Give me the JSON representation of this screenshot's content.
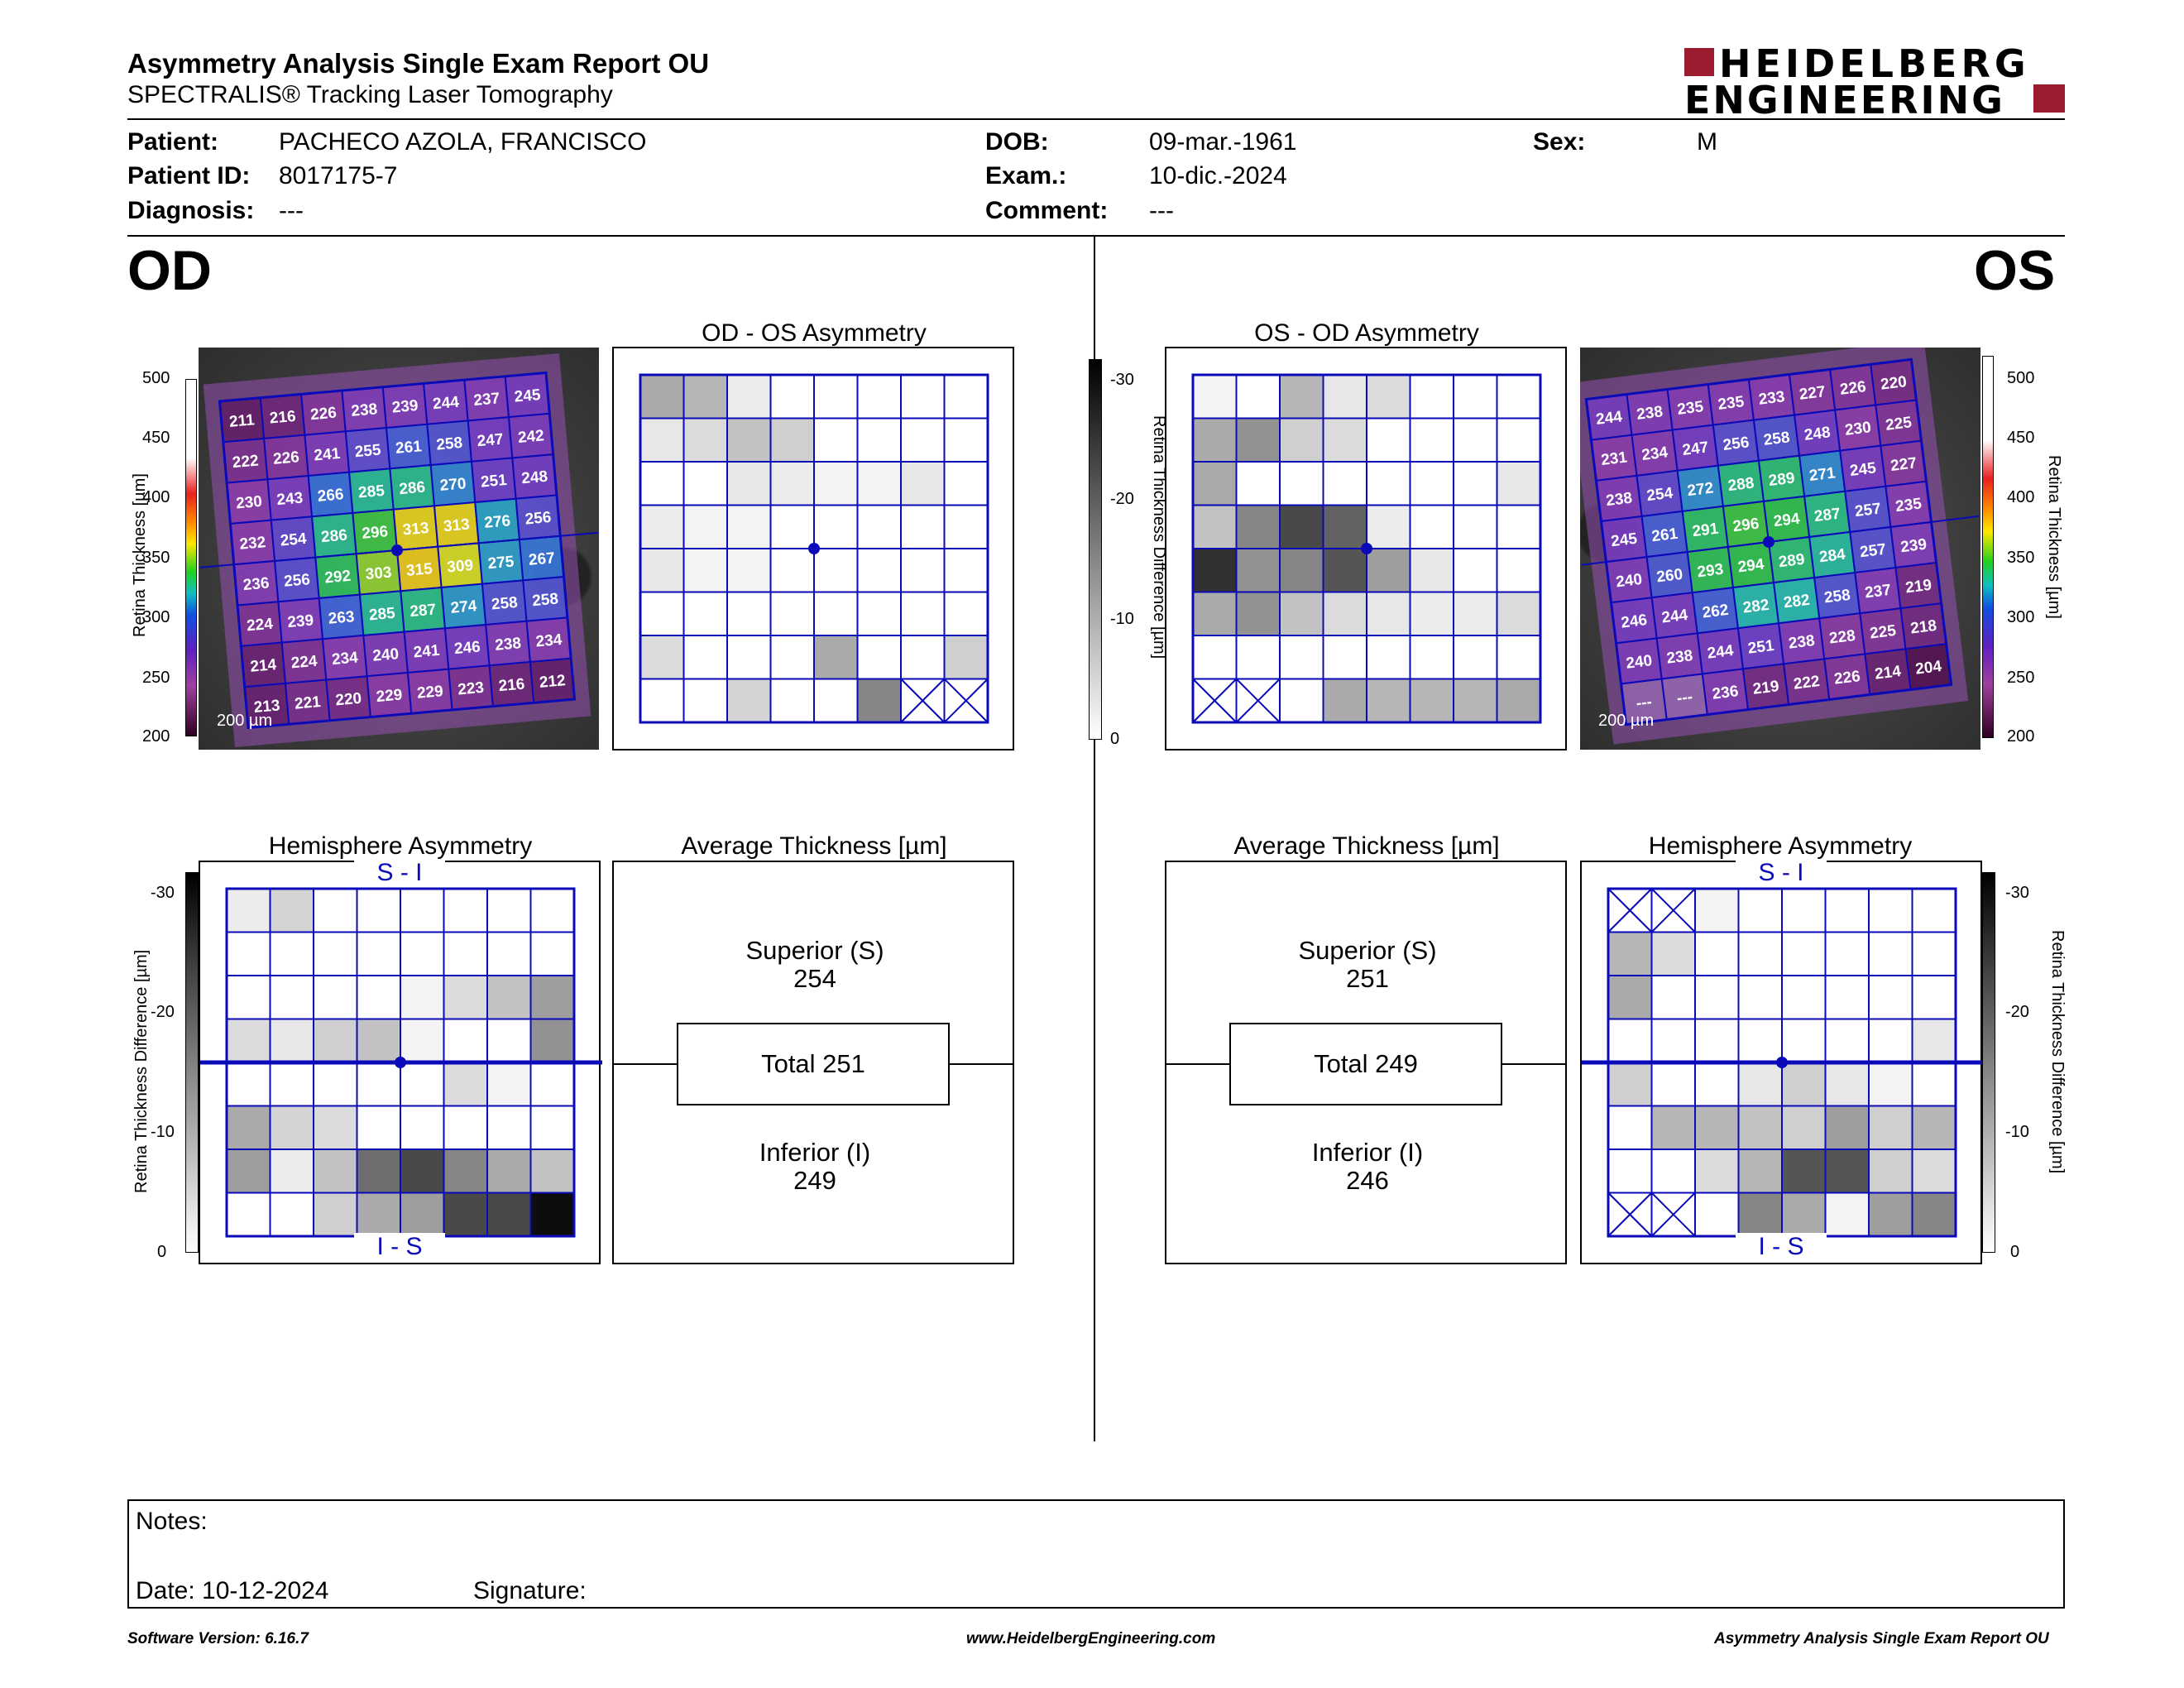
{
  "header": {
    "title": "Asymmetry Analysis Single Exam Report OU",
    "subtitle": "SPECTRALIS® Tracking Laser Tomography",
    "logo_line1": "HEIDELBERG",
    "logo_line2": "ENGINEERING"
  },
  "patient": {
    "patient_label": "Patient:",
    "patient_value": "PACHECO AZOLA, FRANCISCO",
    "id_label": "Patient ID:",
    "id_value": "8017175-7",
    "diagnosis_label": "Diagnosis:",
    "diagnosis_value": "---",
    "dob_label": "DOB:",
    "dob_value": "09-mar.-1961",
    "exam_label": "Exam.:",
    "exam_value": "10-dic.-2024",
    "comment_label": "Comment:",
    "comment_value": "---",
    "sex_label": "Sex:",
    "sex_value": "M"
  },
  "od": {
    "eye_label": "OD",
    "asym_title": "OD - OS Asymmetry",
    "hemi_title": "Hemisphere Asymmetry",
    "avg_title": "Average Thickness [µm]",
    "scale_label": "200 µm",
    "superior_label": "Superior (S)",
    "superior_value": "254",
    "total_label": "Total 251",
    "inferior_label": "Inferior (I)",
    "inferior_value": "249",
    "hemi_top": "S - I",
    "hemi_bottom": "I - S",
    "thickness_grid": [
      [
        211,
        216,
        226,
        238,
        239,
        244,
        237,
        245
      ],
      [
        222,
        226,
        241,
        255,
        261,
        258,
        247,
        242
      ],
      [
        230,
        243,
        266,
        285,
        286,
        270,
        251,
        248
      ],
      [
        232,
        254,
        286,
        296,
        313,
        313,
        276,
        256
      ],
      [
        236,
        256,
        292,
        303,
        315,
        309,
        275,
        267
      ],
      [
        224,
        239,
        263,
        285,
        287,
        274,
        258,
        258
      ],
      [
        214,
        224,
        234,
        240,
        241,
        246,
        238,
        234
      ],
      [
        213,
        221,
        220,
        229,
        229,
        223,
        216,
        212
      ]
    ],
    "asym_grid": [
      [
        0.35,
        0.3,
        0.08,
        0,
        0,
        0,
        0,
        0
      ],
      [
        0.1,
        0.15,
        0.25,
        0.2,
        0,
        0,
        0,
        0
      ],
      [
        0,
        0,
        0.1,
        0.08,
        0.05,
        0.05,
        0.1,
        0
      ],
      [
        0.08,
        0.05,
        0.05,
        0,
        0,
        0,
        0,
        0
      ],
      [
        0.1,
        0.05,
        0.05,
        0,
        0,
        0,
        0,
        0
      ],
      [
        0,
        0,
        0,
        0,
        0,
        0,
        0,
        0
      ],
      [
        0.15,
        0,
        0,
        0,
        0.35,
        0,
        0,
        0.2
      ],
      [
        0,
        0,
        0.18,
        0,
        0,
        0.5,
        "x",
        "x"
      ]
    ],
    "hemi_grid": [
      [
        0.08,
        0.18,
        0,
        0,
        0,
        0,
        0,
        0
      ],
      [
        0,
        0,
        0,
        0,
        0,
        0,
        0,
        0
      ],
      [
        0,
        0,
        0,
        0,
        0.05,
        0.15,
        0.25,
        0.4
      ],
      [
        0.15,
        0.1,
        0.2,
        0.25,
        0.05,
        0,
        0,
        0.45
      ],
      [
        0,
        0,
        0,
        0,
        0,
        0.15,
        0.05,
        0
      ],
      [
        0.35,
        0.18,
        0.15,
        0,
        0,
        0,
        0,
        0
      ],
      [
        0.4,
        0.08,
        0.25,
        0.6,
        0.75,
        0.5,
        0.35,
        0.25
      ],
      [
        0,
        0,
        0.2,
        0.35,
        0.4,
        0.75,
        0.75,
        1.0
      ]
    ]
  },
  "os": {
    "eye_label": "OS",
    "asym_title": "OS - OD Asymmetry",
    "hemi_title": "Hemisphere Asymmetry",
    "avg_title": "Average Thickness [µm]",
    "scale_label": "200 µm",
    "superior_label": "Superior (S)",
    "superior_value": "251",
    "total_label": "Total 249",
    "inferior_label": "Inferior (I)",
    "inferior_value": "246",
    "hemi_top": "S - I",
    "hemi_bottom": "I - S",
    "thickness_grid": [
      [
        244,
        238,
        235,
        235,
        233,
        227,
        226,
        220
      ],
      [
        231,
        234,
        247,
        256,
        258,
        248,
        230,
        225
      ],
      [
        238,
        254,
        272,
        288,
        289,
        271,
        245,
        227
      ],
      [
        245,
        261,
        291,
        296,
        294,
        287,
        257,
        235
      ],
      [
        240,
        260,
        293,
        294,
        289,
        284,
        257,
        239
      ],
      [
        246,
        244,
        262,
        282,
        282,
        258,
        237,
        219
      ],
      [
        240,
        238,
        244,
        251,
        238,
        228,
        225,
        218
      ],
      [
        "---",
        "---",
        236,
        219,
        222,
        226,
        214,
        204
      ]
    ],
    "asym_grid": [
      [
        0.05,
        0,
        0.3,
        0.1,
        0.15,
        0,
        0,
        0
      ],
      [
        0.35,
        0.45,
        0.2,
        0.15,
        0,
        0,
        0,
        0
      ],
      [
        0.35,
        0,
        0,
        0,
        0,
        0,
        0,
        0.1
      ],
      [
        0.25,
        0.5,
        0.75,
        0.65,
        0.08,
        0,
        0,
        0
      ],
      [
        0.85,
        0.45,
        0.5,
        0.7,
        0.4,
        0.1,
        0,
        0
      ],
      [
        0.35,
        0.45,
        0.25,
        0.15,
        0.1,
        0.08,
        0.08,
        0.15
      ],
      [
        0,
        0,
        0,
        0,
        0,
        0,
        0,
        0
      ],
      [
        "x",
        "x",
        0,
        0.35,
        0.3,
        0.3,
        0.3,
        0.35
      ]
    ],
    "hemi_grid": [
      [
        "x",
        "x",
        0.05,
        0,
        0,
        0,
        0,
        0
      ],
      [
        0.3,
        0.15,
        0,
        0,
        0,
        0,
        0,
        0
      ],
      [
        0.35,
        0,
        0,
        0,
        0,
        0,
        0,
        0
      ],
      [
        0,
        0,
        0,
        0,
        0,
        0,
        0,
        0.1
      ],
      [
        0.2,
        0,
        0,
        0.1,
        0.2,
        0.1,
        0.05,
        0
      ],
      [
        0,
        0.3,
        0.3,
        0.25,
        0.2,
        0.4,
        0.2,
        0.3
      ],
      [
        0,
        0,
        0.15,
        0.3,
        0.7,
        0.7,
        0.2,
        0.15
      ],
      [
        "x",
        "x",
        0,
        0.5,
        0.35,
        0.05,
        0.4,
        0.5
      ]
    ]
  },
  "thickness_scale": {
    "label": "Retina Thickness [µm]",
    "ticks": [
      "500",
      "450",
      "400",
      "350",
      "300",
      "250",
      "200"
    ]
  },
  "diff_scale": {
    "label": "Retina Thickness Difference [µm]",
    "ticks": [
      "-30",
      "-20",
      "-10",
      "0"
    ]
  },
  "notes": {
    "notes_label": "Notes:",
    "date_label": "Date: 10-12-2024",
    "signature_label": "Signature:"
  },
  "footer": {
    "version": "Software Version: 6.16.7",
    "url": "www.HeidelbergEngineering.com",
    "report": "Asymmetry Analysis Single Exam Report OU"
  },
  "colors": {
    "grid_blue": "#0a0ab8",
    "logo_red": "#9b1b30"
  }
}
